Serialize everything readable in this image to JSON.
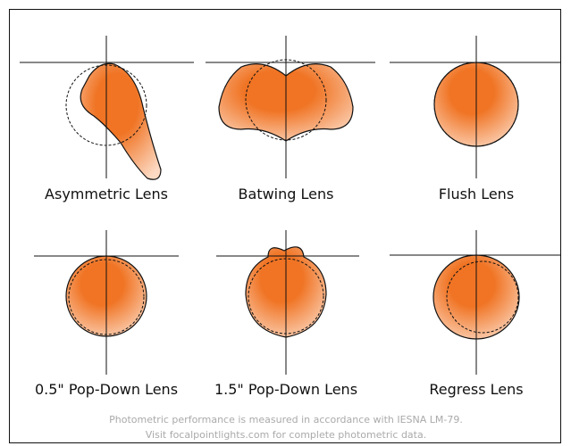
{
  "panels": [
    {
      "label": "Asymmetric Lens"
    },
    {
      "label": "Batwing Lens"
    },
    {
      "label": "Flush Lens"
    },
    {
      "label": "0.5\" Pop-Down Lens"
    },
    {
      "label": "1.5\" Pop-Down Lens"
    },
    {
      "label": "Regress Lens"
    }
  ],
  "footer": {
    "line1": "Photometric performance is measured in accordance with IESNA LM-79.",
    "line2": "Visit focalpointlights.com for complete photometric data."
  }
}
